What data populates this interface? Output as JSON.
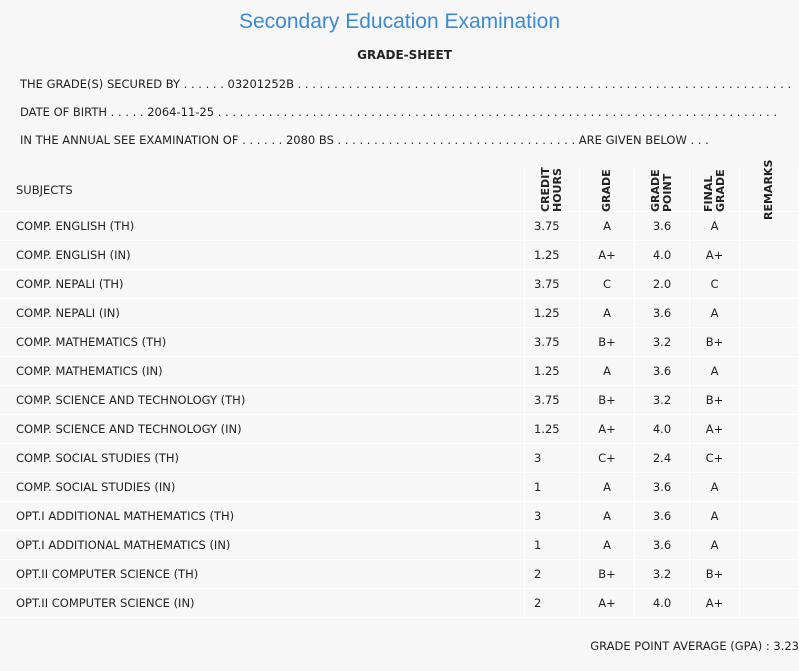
{
  "header": {
    "title": "Secondary Education Examination",
    "subtitle": "GRADE-SHEET"
  },
  "info": [
    "THE GRADE(S) SECURED BY . . . . . . 03201252B . . . . . . . . . . . . . . . . . . . . . . . . . . . . . . . . . . . . . . . . . . . . . . . . . . . . . . . . . . . . . . . . . . . .",
    "DATE OF BIRTH . . . . . 2064-11-25 . . . . . . . . . . . . . . . . . . . . . . . . . . . . . . . . . . . . . . . . . . . . . . . . . . . . . . . . . . . . . . . . . . . . . . . . . . . . .",
    "IN THE ANNUAL SEE EXAMINATION OF . . . . . . 2080 BS . . . . . . . . . . . . . . . . . . . . . . . . . . . . . . . . . ARE GIVEN BELOW . . ."
  ],
  "table": {
    "columns": [
      "SUBJECTS",
      "CREDIT HOURS",
      "GRADE",
      "GRADE POINT",
      "FINAL GRADE",
      "REMARKS"
    ],
    "rows": [
      [
        "COMP. ENGLISH (TH)",
        "3.75",
        "A",
        "3.6",
        "A"
      ],
      [
        "COMP. ENGLISH (IN)",
        "1.25",
        "A+",
        "4.0",
        "A+"
      ],
      [
        "COMP. NEPALI (TH)",
        "3.75",
        "C",
        "2.0",
        "C"
      ],
      [
        "COMP. NEPALI (IN)",
        "1.25",
        "A",
        "3.6",
        "A"
      ],
      [
        "COMP. MATHEMATICS (TH)",
        "3.75",
        "B+",
        "3.2",
        "B+"
      ],
      [
        "COMP. MATHEMATICS (IN)",
        "1.25",
        "A",
        "3.6",
        "A"
      ],
      [
        "COMP. SCIENCE AND TECHNOLOGY (TH)",
        "3.75",
        "B+",
        "3.2",
        "B+"
      ],
      [
        "COMP. SCIENCE AND TECHNOLOGY (IN)",
        "1.25",
        "A+",
        "4.0",
        "A+"
      ],
      [
        "COMP. SOCIAL STUDIES (TH)",
        "3",
        "C+",
        "2.4",
        "C+"
      ],
      [
        "COMP. SOCIAL STUDIES (IN)",
        "1",
        "A",
        "3.6",
        "A"
      ],
      [
        "OPT.I ADDITIONAL MATHEMATICS (TH)",
        "3",
        "A",
        "3.6",
        "A"
      ],
      [
        "OPT.I ADDITIONAL MATHEMATICS (IN)",
        "1",
        "A",
        "3.6",
        "A"
      ],
      [
        "OPT.II COMPUTER SCIENCE (TH)",
        "2",
        "B+",
        "3.2",
        "B+"
      ],
      [
        "OPT.II COMPUTER SCIENCE (IN)",
        "2",
        "A+",
        "4.0",
        "A+"
      ]
    ]
  },
  "footer": "GRADE POINT AVERAGE (GPA) : 3.23"
}
